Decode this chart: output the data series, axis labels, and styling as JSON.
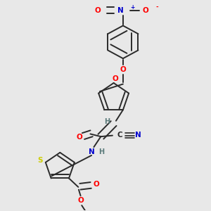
{
  "bg_color": "#e8e8e8",
  "bond_color": "#2a2a2a",
  "atom_colors": {
    "O": "#ff0000",
    "N": "#0000cc",
    "S": "#cccc00",
    "C": "#2a2a2a",
    "H": "#5a7a7a"
  }
}
